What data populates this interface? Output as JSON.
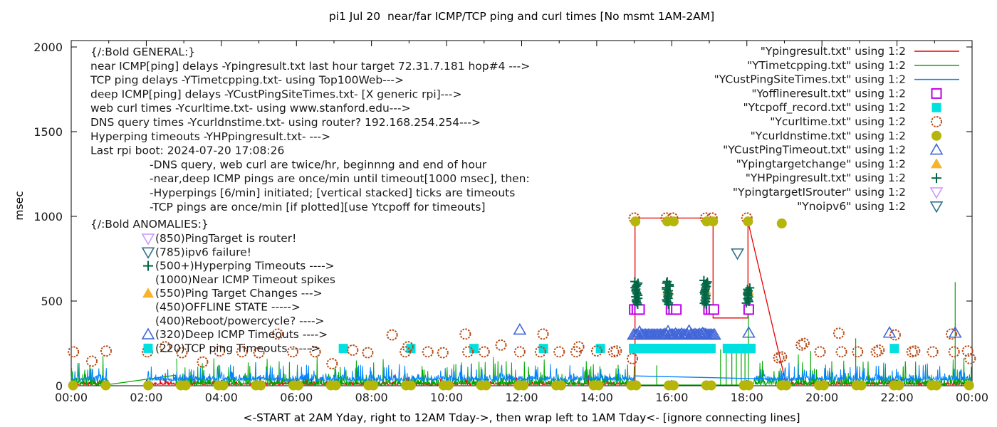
{
  "title": "pi1 Jul 20  near/far ICMP/TCP ping and curl times [No msmt 1AM-2AM]",
  "ylabel": "msec",
  "xlabel": "<-START at 2AM Yday, right to 12AM Tday->, then wrap left to 1AM Tday<- [ignore connecting lines]",
  "colors": {
    "red": "#e60000",
    "green": "#00a800",
    "blue": "#0084ff",
    "magenta": "#bf00e8",
    "cyan": "#00e0e0",
    "orange": "#b84913",
    "olive": "#b5b50a",
    "royal": "#4166d8",
    "darkgreen": "#006644",
    "orangetri": "#f8b32a",
    "violet": "#cc99ff",
    "teal": "#336f8a",
    "axis": "#000000",
    "text": "#1a1a1a"
  },
  "axes": {
    "x_tick_labels": [
      "00:00",
      "02:00",
      "04:00",
      "06:00",
      "08:00",
      "10:00",
      "12:00",
      "14:00",
      "16:00",
      "18:00",
      "20:00",
      "22:00",
      "00:00"
    ],
    "x_tick_hours": [
      0,
      2,
      4,
      6,
      8,
      10,
      12,
      14,
      16,
      18,
      20,
      22,
      24
    ],
    "x_minor_step_hours": 1,
    "y_tick_labels": [
      "0",
      "500",
      "1000",
      "1500",
      "2000"
    ],
    "y_tick_values": [
      0,
      500,
      1000,
      1500,
      2000
    ],
    "x_range_hours": [
      0,
      24
    ],
    "y_range_msec": [
      0,
      2000
    ],
    "grid": false
  },
  "legend": {
    "position": "top-right-inside",
    "entries": [
      {
        "label": "\"Ypingresult.txt\" using 1:2",
        "sample": "line",
        "color": "red"
      },
      {
        "label": "\"YTimetcpping.txt\" using 1:2",
        "sample": "line",
        "color": "green"
      },
      {
        "label": "\"YCustPingSiteTimes.txt\" using 1:2",
        "sample": "line",
        "color": "blue"
      },
      {
        "label": "\"Yofflineresult.txt\" using 1:2",
        "sample": "sq-open",
        "color": "magenta"
      },
      {
        "label": "\"Ytcpoff_record.txt\" using 1:2",
        "sample": "sq-fill",
        "color": "cyan"
      },
      {
        "label": "\"Ycurltime.txt\" using 1:2",
        "sample": "circle-open",
        "color": "orange"
      },
      {
        "label": "\"Ycurldnstime.txt\" using 1:2",
        "sample": "circle-fill",
        "color": "olive"
      },
      {
        "label": "\"YCustPingTimeout.txt\" using 1:2",
        "sample": "tri-up-open",
        "color": "royal"
      },
      {
        "label": "\"Ypingtargetchange\" using 1:2",
        "sample": "tri-up-fill",
        "color": "orangetri"
      },
      {
        "label": "\"YHPpingresult.txt\" using 1:2",
        "sample": "plus",
        "color": "darkgreen"
      },
      {
        "label": "\"YpingtargetISrouter\" using 1:2",
        "sample": "tri-down-open",
        "color": "violet"
      },
      {
        "label": "\"Ynoipv6\" using 1:2",
        "sample": "tri-down-open",
        "color": "teal"
      }
    ]
  },
  "annotations": {
    "general_lines": [
      "{/:Bold GENERAL:}",
      "near ICMP[ping] delays -Ypingresult.txt last hour target 72.31.7.181 hop#4 --->",
      "TCP ping delays -YTimetcpping.txt- using Top100Web--->",
      "deep ICMP[ping] delays -YCustPingSiteTimes.txt- [X generic rpi]--->",
      "web curl times -Ycurltime.txt- using www.stanford.edu--->",
      "DNS query times -Ycurldnstime.txt- using router? 192.168.254.254--->",
      "Hyperping timeouts -YHPpingresult.txt- --->",
      "Last rpi boot: 2024-07-20 17:08:26"
    ],
    "indented_lines": [
      "-DNS query, web curl are twice/hr, beginnng and end of hour",
      "-near,deep ICMP pings are once/min until timeout[1000 msec], then:",
      " -Hyperpings [6/min] initiated; [vertical stacked] ticks are timeouts",
      "-TCP pings are once/min [if plotted][use Ytcpoff for timeouts]"
    ],
    "anomalies_header": "{/:Bold ANOMALIES:}",
    "anomalies": [
      {
        "marker": "tri-down-open",
        "color": "violet",
        "text": "(850)PingTarget is router!"
      },
      {
        "marker": "tri-down-open",
        "color": "teal",
        "text": "(785)ipv6 failure!"
      },
      {
        "marker": "plus",
        "color": "darkgreen",
        "text": "(500+)Hyperping Timeouts ---->"
      },
      {
        "marker": null,
        "color": null,
        "text": "(1000)Near ICMP Timeout spikes"
      },
      {
        "marker": "tri-up-fill",
        "color": "orangetri",
        "text": "(550)Ping Target Changes --->"
      },
      {
        "marker": null,
        "color": null,
        "text": "(450)OFFLINE STATE ----->"
      },
      {
        "marker": null,
        "color": null,
        "text": "(400)Reboot/powercycle? ---->"
      },
      {
        "marker": "tri-up-open",
        "color": "royal",
        "text": "(320)Deep ICMP Timeouts ---->"
      },
      {
        "marker": "sq-fill",
        "color": "cyan",
        "text": "(220)TCP ping Timeouts ----->"
      }
    ]
  },
  "chart_data": {
    "type": "line",
    "x_unit": "hours_of_day",
    "y_unit": "msec",
    "xlim": [
      0,
      24
    ],
    "ylim": [
      0,
      2000
    ],
    "no_measurement_window_hours": [
      1,
      2
    ],
    "noise_seed": 1337,
    "series": [
      {
        "name": "Ypingresult",
        "kind": "line",
        "color": "red",
        "noise": {
          "segments": [
            [
              0,
              1
            ],
            [
              2,
              15.02
            ],
            [
              19.05,
              24
            ]
          ],
          "base": 6,
          "amp": 24,
          "spike_prob": 0.05,
          "spike_amp": 55,
          "min": 2
        },
        "paths": [
          [
            [
              15.02,
              8
            ],
            [
              15.02,
              990
            ],
            [
              17.1,
              990
            ],
            [
              17.1,
              400
            ],
            [
              18.03,
              400
            ],
            [
              18.03,
              970
            ],
            [
              19.05,
              5
            ]
          ]
        ]
      },
      {
        "name": "YTimetcpping",
        "kind": "line",
        "color": "green",
        "noise": {
          "segments": [
            [
              0,
              1.0
            ],
            [
              2.8,
              15.0
            ],
            [
              18.15,
              24
            ]
          ],
          "base": 4,
          "amp": 60,
          "spike_prob": 0.1,
          "spike_amp": 140,
          "min": 1
        },
        "paths": [
          [
            [
              1.02,
              8
            ],
            [
              2.78,
              62
            ],
            [
              2.8,
              8
            ]
          ],
          [
            [
              15.0,
              4
            ],
            [
              18.15,
              4
            ]
          ]
        ],
        "spikes": [
          [
            15.6,
            120
          ],
          [
            17.3,
            215
          ],
          [
            17.45,
            222
          ],
          [
            17.6,
            215
          ],
          [
            17.72,
            225
          ],
          [
            17.85,
            212
          ],
          [
            17.95,
            220
          ],
          [
            18.04,
            560
          ],
          [
            19.7,
            205
          ],
          [
            20.9,
            280
          ],
          [
            23.55,
            612
          ]
        ]
      },
      {
        "name": "YCustPingSiteTimes",
        "kind": "line",
        "color": "blue",
        "noise": {
          "segments": [
            [
              0,
              1
            ],
            [
              2,
              15.0
            ],
            [
              18.2,
              24
            ]
          ],
          "base": 30,
          "amp": 42,
          "spike_prob": 0.12,
          "spike_amp": 85,
          "min": 14
        },
        "paths": [
          [
            [
              14.98,
              58
            ],
            [
              19.0,
              38
            ]
          ]
        ]
      },
      {
        "name": "Yofflineresult",
        "kind": "scatter",
        "marker": "sq-open",
        "color": "magenta",
        "points": [
          [
            15.0,
            450
          ],
          [
            15.07,
            450
          ],
          [
            15.14,
            450
          ],
          [
            15.98,
            450
          ],
          [
            16.05,
            450
          ],
          [
            16.12,
            450
          ],
          [
            16.98,
            450
          ],
          [
            17.05,
            450
          ],
          [
            17.12,
            450
          ],
          [
            18.05,
            450
          ]
        ]
      },
      {
        "name": "Ytcpoff_record",
        "kind": "scatter",
        "marker": "sq-fill",
        "color": "cyan",
        "points": [
          [
            7.25,
            220
          ],
          [
            9.05,
            220
          ],
          [
            10.73,
            220
          ],
          [
            12.58,
            220
          ],
          [
            14.1,
            220
          ],
          [
            21.93,
            220
          ]
        ],
        "bands": [
          {
            "from": 14.98,
            "to": 17.08,
            "step": 0.035,
            "v": 220
          },
          {
            "from": 17.48,
            "to": 18.12,
            "step": 0.035,
            "v": 220
          }
        ]
      },
      {
        "name": "Ycurltime",
        "kind": "scatter",
        "marker": "circle-open",
        "color": "orange",
        "points": [
          [
            0.06,
            200
          ],
          [
            0.55,
            145
          ],
          [
            0.93,
            205
          ],
          [
            2.03,
            200
          ],
          [
            2.5,
            230
          ],
          [
            2.95,
            195
          ],
          [
            3.5,
            140
          ],
          [
            3.95,
            205
          ],
          [
            4.55,
            200
          ],
          [
            5.0,
            195
          ],
          [
            5.5,
            305
          ],
          [
            5.9,
            200
          ],
          [
            6.5,
            200
          ],
          [
            6.95,
            130
          ],
          [
            7.5,
            210
          ],
          [
            7.9,
            195
          ],
          [
            8.55,
            300
          ],
          [
            8.9,
            200
          ],
          [
            8.97,
            230
          ],
          [
            9.5,
            200
          ],
          [
            9.9,
            195
          ],
          [
            10.5,
            305
          ],
          [
            10.57,
            200
          ],
          [
            11.0,
            200
          ],
          [
            11.45,
            240
          ],
          [
            11.95,
            200
          ],
          [
            12.5,
            200
          ],
          [
            12.57,
            305
          ],
          [
            13.0,
            200
          ],
          [
            13.45,
            200
          ],
          [
            13.52,
            230
          ],
          [
            14.0,
            205
          ],
          [
            14.45,
            200
          ],
          [
            14.52,
            205
          ],
          [
            14.95,
            160
          ],
          [
            15.0,
            990
          ],
          [
            15.85,
            990
          ],
          [
            16.02,
            990
          ],
          [
            16.9,
            990
          ],
          [
            17.07,
            990
          ],
          [
            18.0,
            990
          ],
          [
            18.85,
            165
          ],
          [
            18.92,
            170
          ],
          [
            19.45,
            240
          ],
          [
            19.52,
            250
          ],
          [
            19.95,
            200
          ],
          [
            20.45,
            310
          ],
          [
            20.52,
            200
          ],
          [
            20.95,
            200
          ],
          [
            21.45,
            200
          ],
          [
            21.52,
            210
          ],
          [
            21.95,
            300
          ],
          [
            22.4,
            200
          ],
          [
            22.47,
            205
          ],
          [
            22.95,
            200
          ],
          [
            23.45,
            305
          ],
          [
            23.52,
            200
          ],
          [
            23.88,
            205
          ],
          [
            23.95,
            160
          ]
        ]
      },
      {
        "name": "Ycurldnstime",
        "kind": "scatter",
        "marker": "circle-fill",
        "color": "olive",
        "points": [
          [
            15.03,
            970
          ],
          [
            15.88,
            970
          ],
          [
            16.05,
            970
          ],
          [
            16.93,
            970
          ],
          [
            17.1,
            970
          ],
          [
            18.03,
            970
          ],
          [
            18.93,
            958
          ]
        ],
        "baseline": {
          "value": 2,
          "hour_offsets": [
            0.05,
            0.92
          ],
          "hours_from": 0,
          "hours_to": 23,
          "skip_hours": [
            1
          ]
        }
      },
      {
        "name": "YCustPingTimeout",
        "kind": "scatter",
        "marker": "tri-up-open",
        "color": "royal",
        "points": [
          [
            11.95,
            330
          ],
          [
            18.05,
            312
          ],
          [
            21.8,
            312
          ],
          [
            23.55,
            312
          ]
        ],
        "bands": [
          {
            "from": 14.98,
            "to": 17.15,
            "step": 0.04,
            "v": 300,
            "jitter": 24
          }
        ]
      },
      {
        "name": "Ypingtargetchange",
        "kind": "scatter",
        "marker": "tri-up-fill",
        "color": "orangetri",
        "points": [
          [
            15.9,
            562
          ],
          [
            16.9,
            565
          ],
          [
            18.04,
            560
          ]
        ]
      },
      {
        "name": "YHPpingresult",
        "kind": "scatter",
        "marker": "plus",
        "color": "darkgreen",
        "clusters": [
          {
            "x": 15.06,
            "lo": 480,
            "hi": 622,
            "step": 9,
            "jitter": 0.05
          },
          {
            "x": 15.9,
            "lo": 480,
            "hi": 622,
            "step": 9,
            "jitter": 0.05
          },
          {
            "x": 16.9,
            "lo": 478,
            "hi": 625,
            "step": 9,
            "jitter": 0.05
          },
          {
            "x": 18.03,
            "lo": 488,
            "hi": 578,
            "step": 9,
            "jitter": 0.05
          }
        ]
      },
      {
        "name": "YpingtargetISrouter",
        "kind": "scatter",
        "marker": "tri-down-open",
        "color": "violet",
        "points": []
      },
      {
        "name": "Ynoipv6",
        "kind": "scatter",
        "marker": "tri-down-open",
        "color": "teal",
        "points": [
          [
            17.75,
            782
          ]
        ]
      }
    ]
  }
}
